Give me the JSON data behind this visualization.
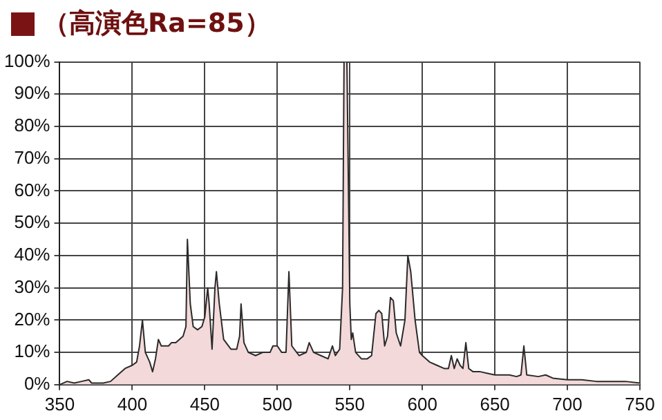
{
  "chart_data": {
    "type": "area",
    "title": "（高演色Ra=85）",
    "x": [
      350,
      355,
      360,
      365,
      370,
      372,
      380,
      385,
      390,
      395,
      400,
      403,
      405,
      407,
      409,
      412,
      414,
      416,
      418,
      420,
      425,
      427,
      430,
      435,
      437,
      438,
      440,
      442,
      445,
      448,
      450,
      452,
      453,
      455,
      457,
      458,
      460,
      463,
      468,
      472,
      474,
      475,
      477,
      480,
      485,
      490,
      495,
      497,
      500,
      503,
      506,
      508,
      510,
      515,
      520,
      522,
      525,
      530,
      535,
      538,
      540,
      543,
      545,
      546,
      548,
      550,
      551,
      552,
      554,
      558,
      562,
      565,
      568,
      570,
      572,
      574,
      576,
      578,
      580,
      582,
      585,
      588,
      590,
      592,
      595,
      598,
      600,
      605,
      610,
      615,
      618,
      620,
      622,
      624,
      626,
      628,
      630,
      632,
      635,
      640,
      645,
      650,
      660,
      665,
      668,
      670,
      672,
      680,
      685,
      690,
      700,
      710,
      720,
      730,
      740,
      750
    ],
    "series": [
      {
        "color": "#f3d9d9",
        "values": [
          0,
          1,
          0.5,
          1,
          1.5,
          0.5,
          0.5,
          1,
          3,
          5,
          6,
          7,
          12,
          20,
          10,
          7,
          4,
          8,
          14,
          12,
          12,
          13,
          13,
          15,
          18,
          45,
          25,
          18,
          17,
          18,
          21,
          30,
          25,
          11,
          30,
          35,
          25,
          14,
          11,
          11,
          15,
          25,
          13,
          10,
          9,
          10,
          10,
          12,
          12,
          10,
          10,
          35,
          12,
          9,
          10,
          13,
          10,
          9,
          8,
          12,
          9,
          11,
          30,
          100,
          100,
          25,
          14,
          16,
          10,
          8,
          8,
          9,
          22,
          23,
          22,
          12,
          15,
          27,
          26,
          16,
          12,
          20,
          40,
          35,
          20,
          10,
          9,
          7,
          6,
          5,
          5,
          9,
          5,
          8,
          6,
          5,
          13,
          5,
          4,
          4,
          3.5,
          3,
          3,
          2.5,
          3,
          12,
          3,
          2.5,
          3,
          2,
          1.5,
          1.5,
          1,
          1,
          1,
          0.5
        ]
      }
    ],
    "xlim": [
      350,
      750
    ],
    "xticks": [
      350,
      400,
      450,
      500,
      550,
      600,
      650,
      700,
      750
    ],
    "ylim": [
      0,
      100
    ],
    "yticks": [
      {
        "value": 0,
        "label": "0%"
      },
      {
        "value": 10,
        "label": "10%"
      },
      {
        "value": 20,
        "label": "20%"
      },
      {
        "value": 30,
        "label": "30%"
      },
      {
        "value": 40,
        "label": "40%"
      },
      {
        "value": 50,
        "label": "50%"
      },
      {
        "value": 60,
        "label": "60%"
      },
      {
        "value": 70,
        "label": "70%"
      },
      {
        "value": 80,
        "label": "80%"
      },
      {
        "value": 90,
        "label": "90%"
      },
      {
        "value": 100,
        "label": "100%"
      }
    ],
    "grid": true
  }
}
